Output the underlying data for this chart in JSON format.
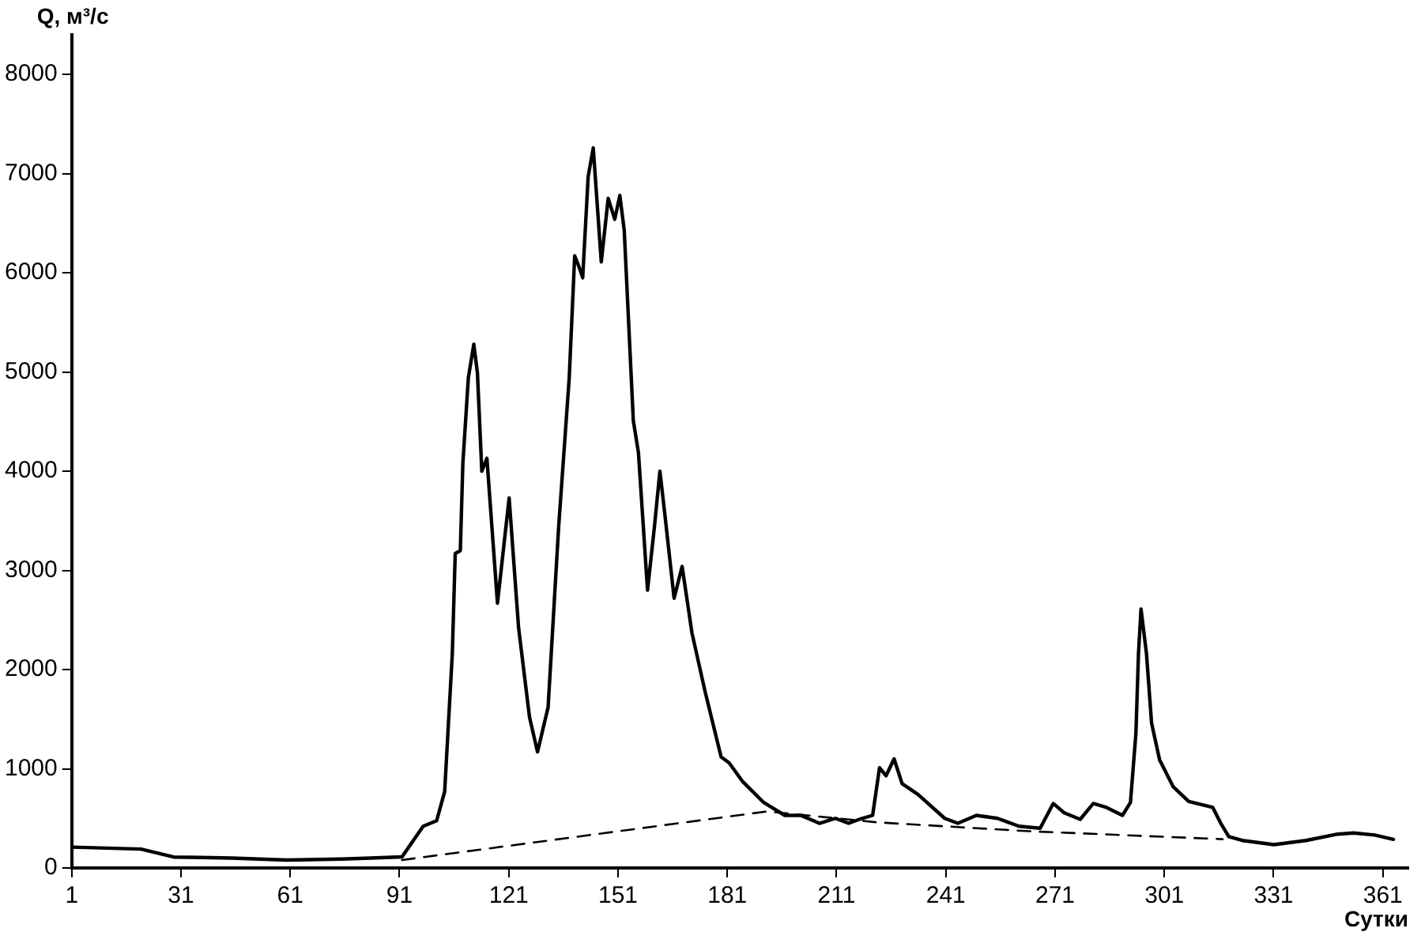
{
  "chart_data": {
    "type": "line",
    "xlabel": "Сутки",
    "ylabel": "Q, м³/с",
    "xlim": [
      1,
      368
    ],
    "ylim": [
      0,
      8400
    ],
    "xticks": [
      1,
      31,
      61,
      91,
      121,
      151,
      181,
      211,
      241,
      271,
      301,
      331,
      361
    ],
    "yticks": [
      0,
      1000,
      2000,
      3000,
      4000,
      5000,
      6000,
      7000,
      8000
    ],
    "grid": false,
    "legend": false,
    "marker": "none",
    "series": [
      {
        "color": "#000000",
        "line_style": "solid",
        "x": [
          1,
          20,
          29,
          45,
          60,
          75,
          83,
          91.7,
          97.5,
          101.2,
          103.4,
          105.5,
          106.3,
          107.7,
          108.4,
          109.9,
          111.4,
          112.4,
          113.6,
          115,
          117.9,
          121.1,
          123.7,
          126.7,
          128.9,
          131.8,
          134.7,
          137.6,
          139.1,
          140.1,
          141.3,
          142.8,
          144.2,
          146.4,
          148.3,
          150.1,
          151.5,
          152.7,
          155.2,
          156.6,
          159.1,
          161,
          162.5,
          163.9,
          166.4,
          168.6,
          171.3,
          174.9,
          179.3,
          181.5,
          185.1,
          191,
          196.8,
          201.2,
          206.3,
          210.7,
          214.3,
          218,
          220.9,
          222.8,
          224.6,
          226.8,
          229,
          233.4,
          240.7,
          244.3,
          249.4,
          255.2,
          261.1,
          266.9,
          270.5,
          273.5,
          277.9,
          281.5,
          285.1,
          289.5,
          291.7,
          293.2,
          293.9,
          294.6,
          296.1,
          297.5,
          299.7,
          303.4,
          307.7,
          314.3,
          316.5,
          318.7,
          322.4,
          331.1,
          339.9,
          348.6,
          353,
          358.8,
          363.9
        ],
        "values": [
          210,
          190,
          110,
          100,
          80,
          90,
          100,
          112,
          421,
          476,
          770,
          2160,
          3170,
          3200,
          4080,
          4940,
          5280,
          4990,
          4000,
          4130,
          2670,
          3730,
          2420,
          1520,
          1170,
          1620,
          3440,
          4940,
          6170,
          6080,
          5950,
          6970,
          7260,
          6110,
          6750,
          6540,
          6780,
          6430,
          4510,
          4190,
          2800,
          3440,
          4000,
          3550,
          2720,
          3040,
          2370,
          1780,
          1120,
          1060,
          876,
          660,
          530,
          530,
          450,
          500,
          450,
          500,
          530,
          1010,
          930,
          1100,
          850,
          740,
          500,
          450,
          530,
          500,
          420,
          400,
          650,
          556,
          490,
          650,
          610,
          530,
          660,
          1360,
          2160,
          2610,
          2160,
          1460,
          1090,
          820,
          670,
          610,
          450,
          315,
          277,
          235,
          277,
          341,
          353,
          332,
          288
        ]
      },
      {
        "color": "#000000",
        "line_style": "dashed",
        "x": [
          91.7,
          192,
          222,
          264,
          317
        ],
        "values": [
          80,
          570,
          460,
          370,
          290
        ]
      }
    ]
  }
}
